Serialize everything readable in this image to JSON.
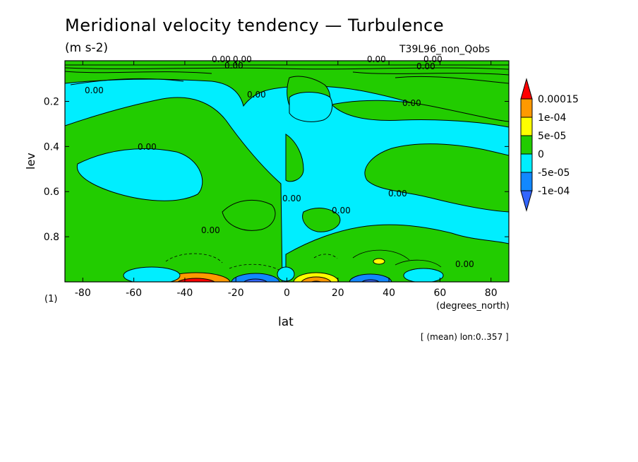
{
  "title": "Meridional velocity tendency — Turbulence",
  "units": "(m s-2)",
  "run_label": "T39L96_non_Qobs",
  "figure_number": "(1)",
  "note": "[ (mean) lon:0..357 ]",
  "chart_data": {
    "type": "heatmap",
    "title": "Meridional velocity tendency — Turbulence",
    "xlabel": "lat",
    "x_units": "(degrees_north)",
    "ylabel": "lev",
    "xlim": [
      -87,
      87
    ],
    "ylim": [
      1.0,
      0.02
    ],
    "x_ticks": [
      -80,
      -60,
      -40,
      -20,
      0,
      20,
      40,
      60,
      80
    ],
    "y_ticks": [
      0.2,
      0.4,
      0.6,
      0.8
    ],
    "colorbar": {
      "labels": [
        "0.00015",
        "1e-04",
        "5e-05",
        "0",
        "-5e-05",
        "-1e-04"
      ],
      "colors": [
        "#ff0000",
        "#ff9900",
        "#ffff00",
        "#22cc00",
        "#00eeff",
        "#1188ff",
        "#3366ff"
      ]
    },
    "contour_labels": [
      "0.00"
    ],
    "features": [
      {
        "region": "surface jet",
        "lat": -37,
        "lev": 0.98,
        "sign": "positive",
        "level": 0.00015
      },
      {
        "region": "surface jet",
        "lat": -12,
        "lev": 0.98,
        "sign": "negative",
        "level": -0.0001
      },
      {
        "region": "surface jet",
        "lat": 12,
        "lev": 0.98,
        "sign": "positive",
        "level": 0.0001
      },
      {
        "region": "surface jet",
        "lat": 35,
        "lev": 0.98,
        "sign": "negative",
        "level": -0.0001
      },
      {
        "region": "upper",
        "lat": 0,
        "lev": 0.2,
        "sign": "negative",
        "level": -5e-05
      }
    ]
  }
}
